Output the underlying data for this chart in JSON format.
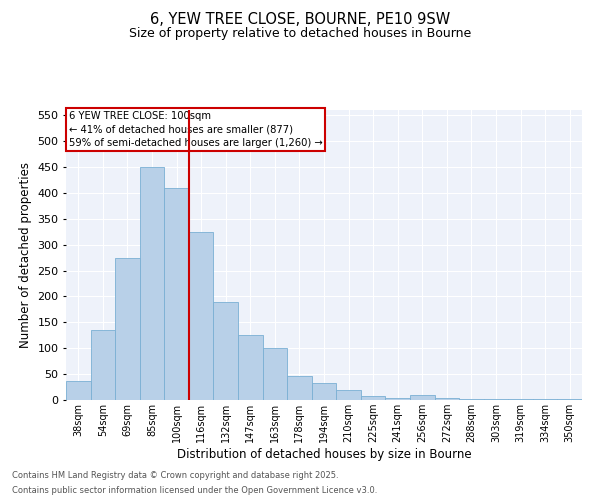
{
  "title1": "6, YEW TREE CLOSE, BOURNE, PE10 9SW",
  "title2": "Size of property relative to detached houses in Bourne",
  "xlabel": "Distribution of detached houses by size in Bourne",
  "ylabel": "Number of detached properties",
  "bar_color": "#b8d0e8",
  "bar_edge_color": "#7aafd4",
  "background_color": "#eef2fa",
  "grid_color": "#ffffff",
  "categories": [
    "38sqm",
    "54sqm",
    "69sqm",
    "85sqm",
    "100sqm",
    "116sqm",
    "132sqm",
    "147sqm",
    "163sqm",
    "178sqm",
    "194sqm",
    "210sqm",
    "225sqm",
    "241sqm",
    "256sqm",
    "272sqm",
    "288sqm",
    "303sqm",
    "319sqm",
    "334sqm",
    "350sqm"
  ],
  "values": [
    37,
    135,
    275,
    450,
    410,
    325,
    190,
    125,
    100,
    47,
    32,
    19,
    7,
    4,
    9,
    3,
    2,
    2,
    1,
    1,
    1
  ],
  "vline_index": 4,
  "vline_color": "#cc0000",
  "annotation_title": "6 YEW TREE CLOSE: 100sqm",
  "annotation_line1": "← 41% of detached houses are smaller (877)",
  "annotation_line2": "59% of semi-detached houses are larger (1,260) →",
  "annotation_box_color": "#cc0000",
  "ylim": [
    0,
    560
  ],
  "yticks": [
    0,
    50,
    100,
    150,
    200,
    250,
    300,
    350,
    400,
    450,
    500,
    550
  ],
  "footnote1": "Contains HM Land Registry data © Crown copyright and database right 2025.",
  "footnote2": "Contains public sector information licensed under the Open Government Licence v3.0."
}
